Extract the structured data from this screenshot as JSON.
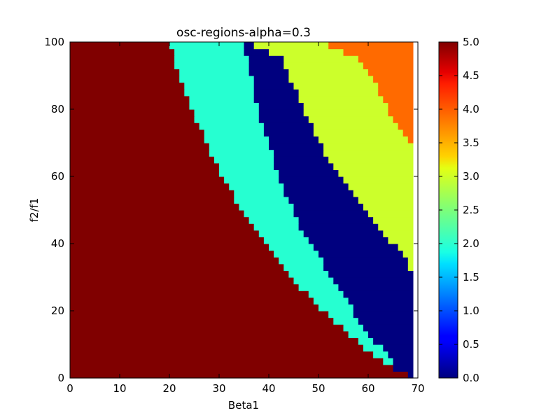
{
  "chart_data": {
    "type": "heatmap",
    "title": "osc-regions-alpha=0.3",
    "xlabel": "Beta1",
    "ylabel": "f2/f1",
    "xlim": [
      0,
      70
    ],
    "ylim": [
      0,
      100
    ],
    "x_ticks": [
      "0",
      "10",
      "20",
      "30",
      "40",
      "50",
      "60",
      "70"
    ],
    "y_ticks": [
      "0",
      "20",
      "40",
      "60",
      "80",
      "100"
    ],
    "grid": false,
    "colormap": "jet",
    "color_range": [
      0,
      5
    ],
    "colorbar_ticks": [
      "0.0",
      "0.5",
      "1.0",
      "1.5",
      "2.0",
      "2.5",
      "3.0",
      "3.5",
      "4.0",
      "4.5",
      "5.0"
    ],
    "data_extent_x": [
      0,
      69
    ],
    "region_colors": {
      "5": "#800000",
      "2": "#26ffd1",
      "0": "#00007f",
      "3": "#ccff2b",
      "4": "#ff6a00"
    },
    "region_boundaries": {
      "description_fields": "For each f2/f1 value, the Beta1 at which the region changes",
      "f2f1": [
        0,
        5,
        10,
        15,
        20,
        25,
        30,
        35,
        40,
        45,
        50,
        55,
        60,
        65,
        70,
        75,
        80,
        85,
        90,
        95,
        100
      ],
      "value5_to_value2": [
        69,
        63,
        58.5,
        54.5,
        51,
        47.5,
        44.5,
        42,
        39,
        37,
        34.8,
        32.5,
        30.5,
        29,
        27.5,
        26,
        24.5,
        23,
        22,
        21,
        20
      ],
      "value2_to_value0": [
        66,
        64.5,
        62,
        59,
        57,
        54.5,
        52.5,
        50.5,
        48,
        46,
        45,
        43,
        42,
        41,
        40,
        38.5,
        38,
        37,
        36.5,
        35.5,
        35
      ],
      "value0_to_value3": [
        69,
        69,
        69,
        69,
        69,
        69,
        69,
        68,
        65,
        61.5,
        59,
        56.5,
        54.5,
        52,
        50.5,
        48.5,
        47,
        45.5,
        44,
        42.5,
        35
      ],
      "value3_to_value4": [
        69,
        69,
        69,
        69,
        69,
        69,
        69,
        69,
        69,
        69,
        69,
        69,
        69,
        68.5,
        68.5,
        66,
        64,
        62,
        61,
        57.5,
        50.5
      ]
    }
  }
}
